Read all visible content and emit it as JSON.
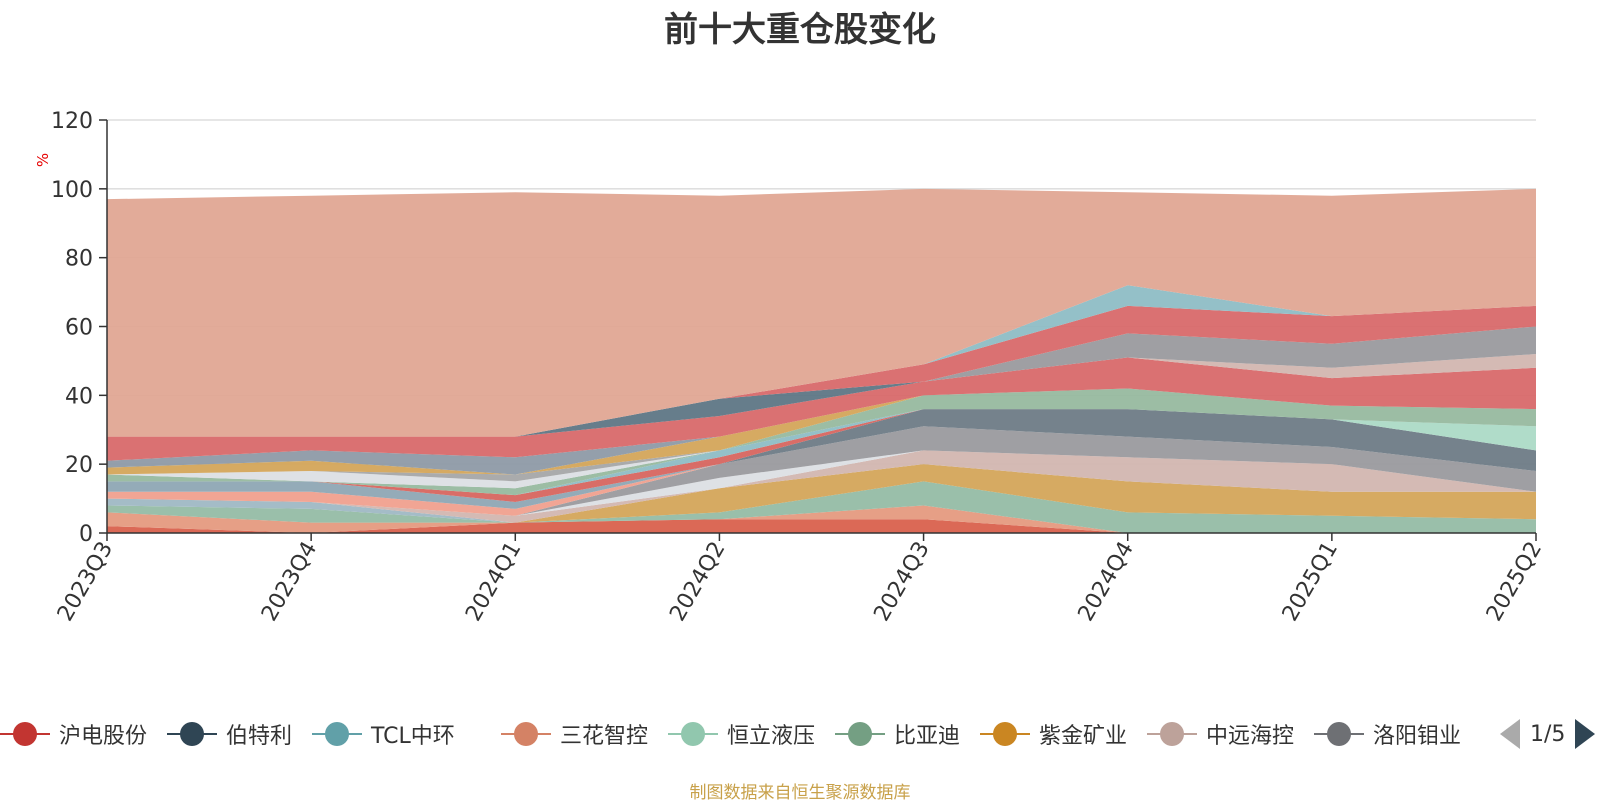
{
  "chart_data": {
    "type": "area",
    "title": "前十大重仓股变化",
    "ylabel": "%",
    "ylim": [
      0,
      120
    ],
    "yticks": [
      "0",
      "20",
      "40",
      "60",
      "80",
      "100",
      "120"
    ],
    "categories": [
      "2023Q3",
      "2023Q4",
      "2024Q1",
      "2024Q2",
      "2024Q3",
      "2024Q4",
      "2025Q1",
      "2025Q2"
    ],
    "grid": true,
    "legend_position": "bottom",
    "series": [
      {
        "name": "",
        "color": "#d9614d",
        "values": [
          2,
          0,
          3,
          4,
          4,
          0,
          0,
          0
        ]
      },
      {
        "name": "",
        "color": "#e59a80",
        "values": [
          4,
          3,
          0,
          0,
          4,
          0,
          0,
          0
        ]
      },
      {
        "name": "",
        "color": "#95bca5",
        "values": [
          2,
          4,
          0,
          2,
          7,
          6,
          5,
          4
        ]
      },
      {
        "name": "",
        "color": "#9fb8c4",
        "values": [
          2,
          2,
          0,
          0,
          0,
          0,
          0,
          0
        ]
      },
      {
        "name": "",
        "color": "#d4a55a",
        "values": [
          0,
          0,
          0,
          7,
          5,
          9,
          7,
          8
        ]
      },
      {
        "name": "",
        "color": "#d2b6b0",
        "values": [
          0,
          0,
          2,
          0,
          4,
          7,
          8,
          0
        ]
      },
      {
        "name": "",
        "color": "#dcdfe4",
        "values": [
          0,
          0,
          0,
          3,
          0,
          0,
          0,
          0
        ]
      },
      {
        "name": "",
        "color": "#9a9a9e",
        "values": [
          0,
          0,
          0,
          4,
          7,
          6,
          5,
          6
        ]
      },
      {
        "name": "",
        "color": "#f0a08e",
        "values": [
          2,
          3,
          2,
          0,
          0,
          0,
          0,
          0
        ]
      },
      {
        "name": "",
        "color": "#6e7b86",
        "values": [
          0,
          0,
          0,
          0,
          5,
          8,
          8,
          6
        ]
      },
      {
        "name": "",
        "color": "#8ea6b4",
        "values": [
          3,
          3,
          2,
          0,
          0,
          0,
          0,
          0
        ]
      },
      {
        "name": "",
        "color": "#d7655f",
        "values": [
          0,
          0,
          2,
          2,
          0,
          0,
          0,
          0
        ]
      },
      {
        "name": "",
        "color": "#acdac6",
        "values": [
          0,
          0,
          0,
          0,
          0,
          0,
          0,
          7
        ]
      },
      {
        "name": "",
        "color": "#8ebdc5",
        "values": [
          0,
          0,
          0,
          2,
          0,
          0,
          0,
          0
        ]
      },
      {
        "name": "",
        "color": "#97b99f",
        "values": [
          2,
          0,
          2,
          0,
          4,
          6,
          4,
          5
        ]
      },
      {
        "name": "",
        "color": "#dcdfe4",
        "values": [
          0,
          3,
          2,
          0,
          0,
          0,
          0,
          0
        ]
      },
      {
        "name": "",
        "color": "#a5a6a8",
        "values": [
          0,
          0,
          2,
          0,
          0,
          0,
          0,
          0
        ]
      },
      {
        "name": "",
        "color": "#d4a55a",
        "values": [
          2,
          3,
          0,
          4,
          0,
          0,
          0,
          0
        ]
      },
      {
        "name": "",
        "color": "#8e9aa6",
        "values": [
          2,
          3,
          5,
          0,
          0,
          0,
          0,
          0
        ]
      },
      {
        "name": "",
        "color": "#d8696a",
        "values": [
          7,
          4,
          6,
          6,
          4,
          9,
          8,
          12
        ]
      },
      {
        "name": "",
        "color": "#d2b6b0",
        "values": [
          0,
          0,
          0,
          0,
          0,
          0,
          3,
          4
        ]
      },
      {
        "name": "",
        "color": "#9a9a9e",
        "values": [
          0,
          0,
          0,
          0,
          0,
          7,
          7,
          8
        ]
      },
      {
        "name": "",
        "color": "#5e7685",
        "values": [
          0,
          0,
          0,
          5,
          0,
          0,
          0,
          0
        ]
      },
      {
        "name": "",
        "color": "#d8696a",
        "values": [
          0,
          0,
          0,
          0,
          5,
          8,
          8,
          6
        ]
      },
      {
        "name": "",
        "color": "#8ebdc5",
        "values": [
          0,
          0,
          0,
          0,
          0,
          6,
          0,
          0
        ]
      },
      {
        "name": "",
        "color": "#e0a793",
        "values": [
          69,
          70,
          71,
          59,
          51,
          27,
          35,
          34
        ]
      }
    ]
  },
  "legend": {
    "items": [
      {
        "label": "沪电股份",
        "color": "#c23531"
      },
      {
        "label": "伯特利",
        "color": "#2f4554"
      },
      {
        "label": "TCL中环",
        "color": "#61a0a8"
      },
      {
        "label": "三花智控",
        "color": "#d48265"
      },
      {
        "label": "恒立液压",
        "color": "#91c7ae"
      },
      {
        "label": "比亚迪",
        "color": "#749f83"
      },
      {
        "label": "紫金矿业",
        "color": "#ca8622"
      },
      {
        "label": "中远海控",
        "color": "#bda29a"
      },
      {
        "label": "洛阳钼业",
        "color": "#6e7074"
      }
    ],
    "page_text": "1/5"
  },
  "source_note": "制图数据来自恒生聚源数据库"
}
